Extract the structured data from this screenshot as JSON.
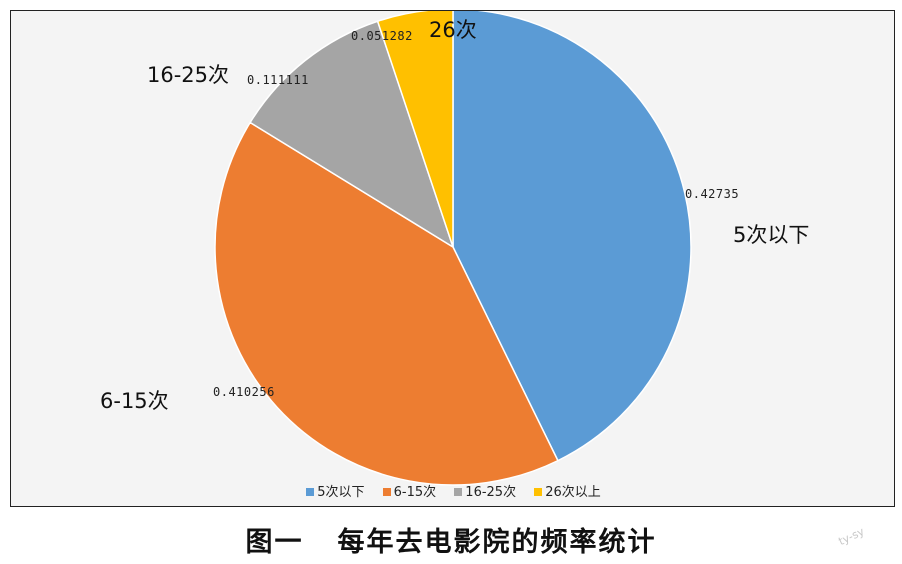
{
  "caption": {
    "number": "图一",
    "text": "每年去电影院的频率统计"
  },
  "watermark": "ty-sy",
  "chart_data": {
    "type": "pie",
    "categories": [
      "5次以下",
      "6-15次",
      "16-25次",
      "26次以上"
    ],
    "slice_labels": [
      "5次以下",
      "6-15次",
      "16-25次",
      "26次"
    ],
    "values": [
      0.42735,
      0.410256,
      0.111111,
      0.051282
    ],
    "value_labels": [
      "0.42735",
      "0.410256",
      "0.111111",
      "0.051282"
    ],
    "colors": [
      "#5b9bd5",
      "#ed7d31",
      "#a5a5a5",
      "#ffc000"
    ],
    "legend": {
      "entries": [
        "5次以下",
        "6-15次",
        "16-25次",
        "26次以上"
      ],
      "position": "bottom"
    },
    "start_angle": "12 o'clock",
    "direction": "clockwise"
  }
}
